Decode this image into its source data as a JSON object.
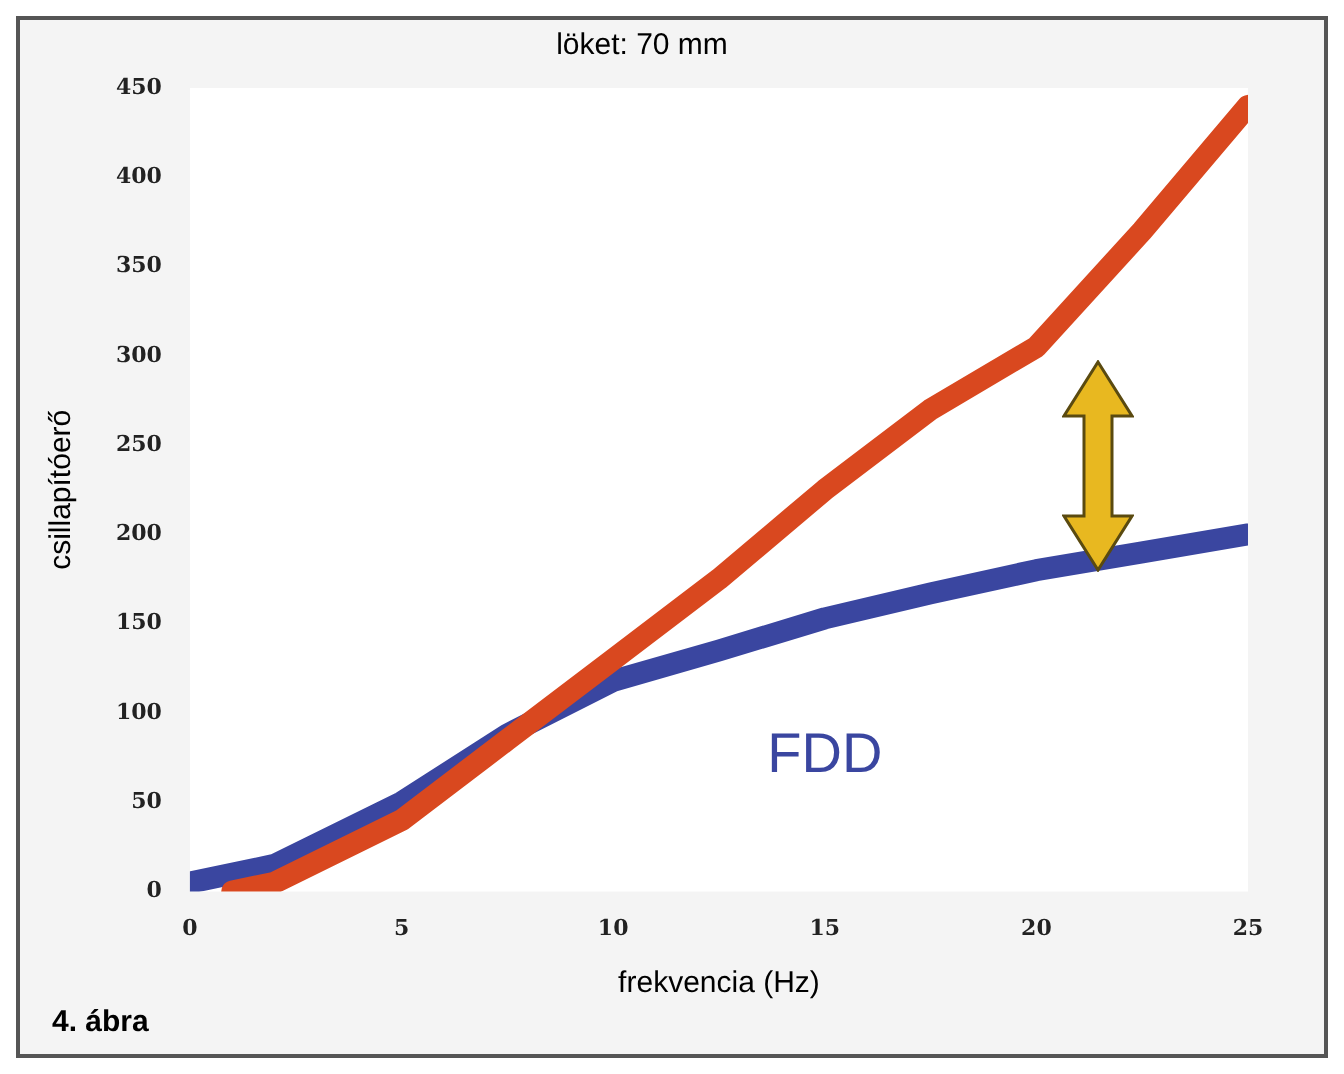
{
  "chart_data": {
    "type": "line",
    "title": "löket: 70 mm",
    "xlabel": "frekvencia (Hz)",
    "ylabel": "csillapítóerő",
    "annotations": [
      "4. ábra"
    ],
    "xlim": [
      0,
      25
    ],
    "xticks": [
      0,
      5,
      10,
      15,
      20,
      25
    ],
    "ylim": [
      0,
      450
    ],
    "yticks": [
      0,
      50,
      100,
      150,
      200,
      250,
      300,
      350,
      400,
      450
    ],
    "grid": false,
    "legend": false,
    "marker": "none",
    "line_style": "solid",
    "series": [
      {
        "color": "#d9481f",
        "x": [
          1,
          2,
          5,
          7.5,
          10,
          12.5,
          15,
          17.5,
          20,
          22.5,
          25
        ],
        "values": [
          0,
          5,
          40,
          85,
          130,
          175,
          225,
          270,
          305,
          370,
          440
        ]
      },
      {
        "name": "FDD",
        "color": "#3a46a0",
        "x": [
          0,
          2,
          5,
          7.5,
          10,
          12.5,
          15,
          17.5,
          20,
          22.5,
          25
        ],
        "values": [
          5,
          15,
          50,
          88,
          118,
          135,
          153,
          167,
          180,
          190,
          200
        ]
      }
    ]
  }
}
